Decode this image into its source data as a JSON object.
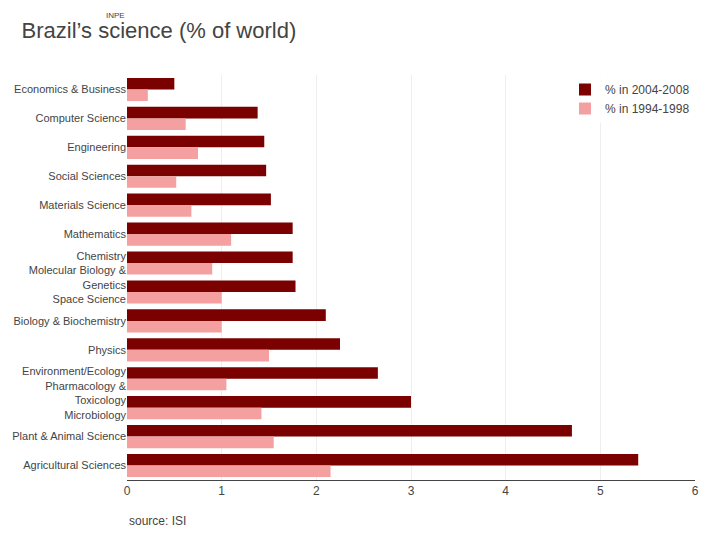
{
  "chart_data": {
    "type": "bar",
    "orientation": "horizontal",
    "title": "Brazil’s science (% of world)",
    "categories": [
      "Economics & Business",
      "Computer Science",
      "Engineering",
      "Social Sciences",
      "Materials Science",
      "Mathematics",
      "Chemistry\nMolecular Biology &",
      "Genetics\nSpace Science",
      "Biology & Biochemistry",
      "Physics",
      "Environment/Ecology\nPharmacology &",
      "Toxicology\nMicrobiology",
      "Plant & Animal Science",
      "Agricultural Sciences"
    ],
    "series": [
      {
        "name": "% in 2004-2008",
        "color": "#7b0000",
        "values": [
          0.5,
          1.38,
          1.45,
          1.47,
          1.52,
          1.75,
          1.75,
          1.78,
          2.1,
          2.25,
          2.65,
          3.0,
          4.7,
          5.4
        ]
      },
      {
        "name": "% in 1994-1998",
        "color": "#f4a0a0",
        "values": [
          0.22,
          0.62,
          0.75,
          0.52,
          0.68,
          1.1,
          0.9,
          1.0,
          1.0,
          1.5,
          1.05,
          1.42,
          1.55,
          2.15
        ]
      }
    ],
    "xlim": [
      0,
      6
    ],
    "xticks": [
      0,
      1,
      2,
      3,
      4,
      5,
      6
    ],
    "grid": true,
    "legend": "upper right",
    "annotations": [
      "source: ISI",
      "INPE"
    ]
  }
}
